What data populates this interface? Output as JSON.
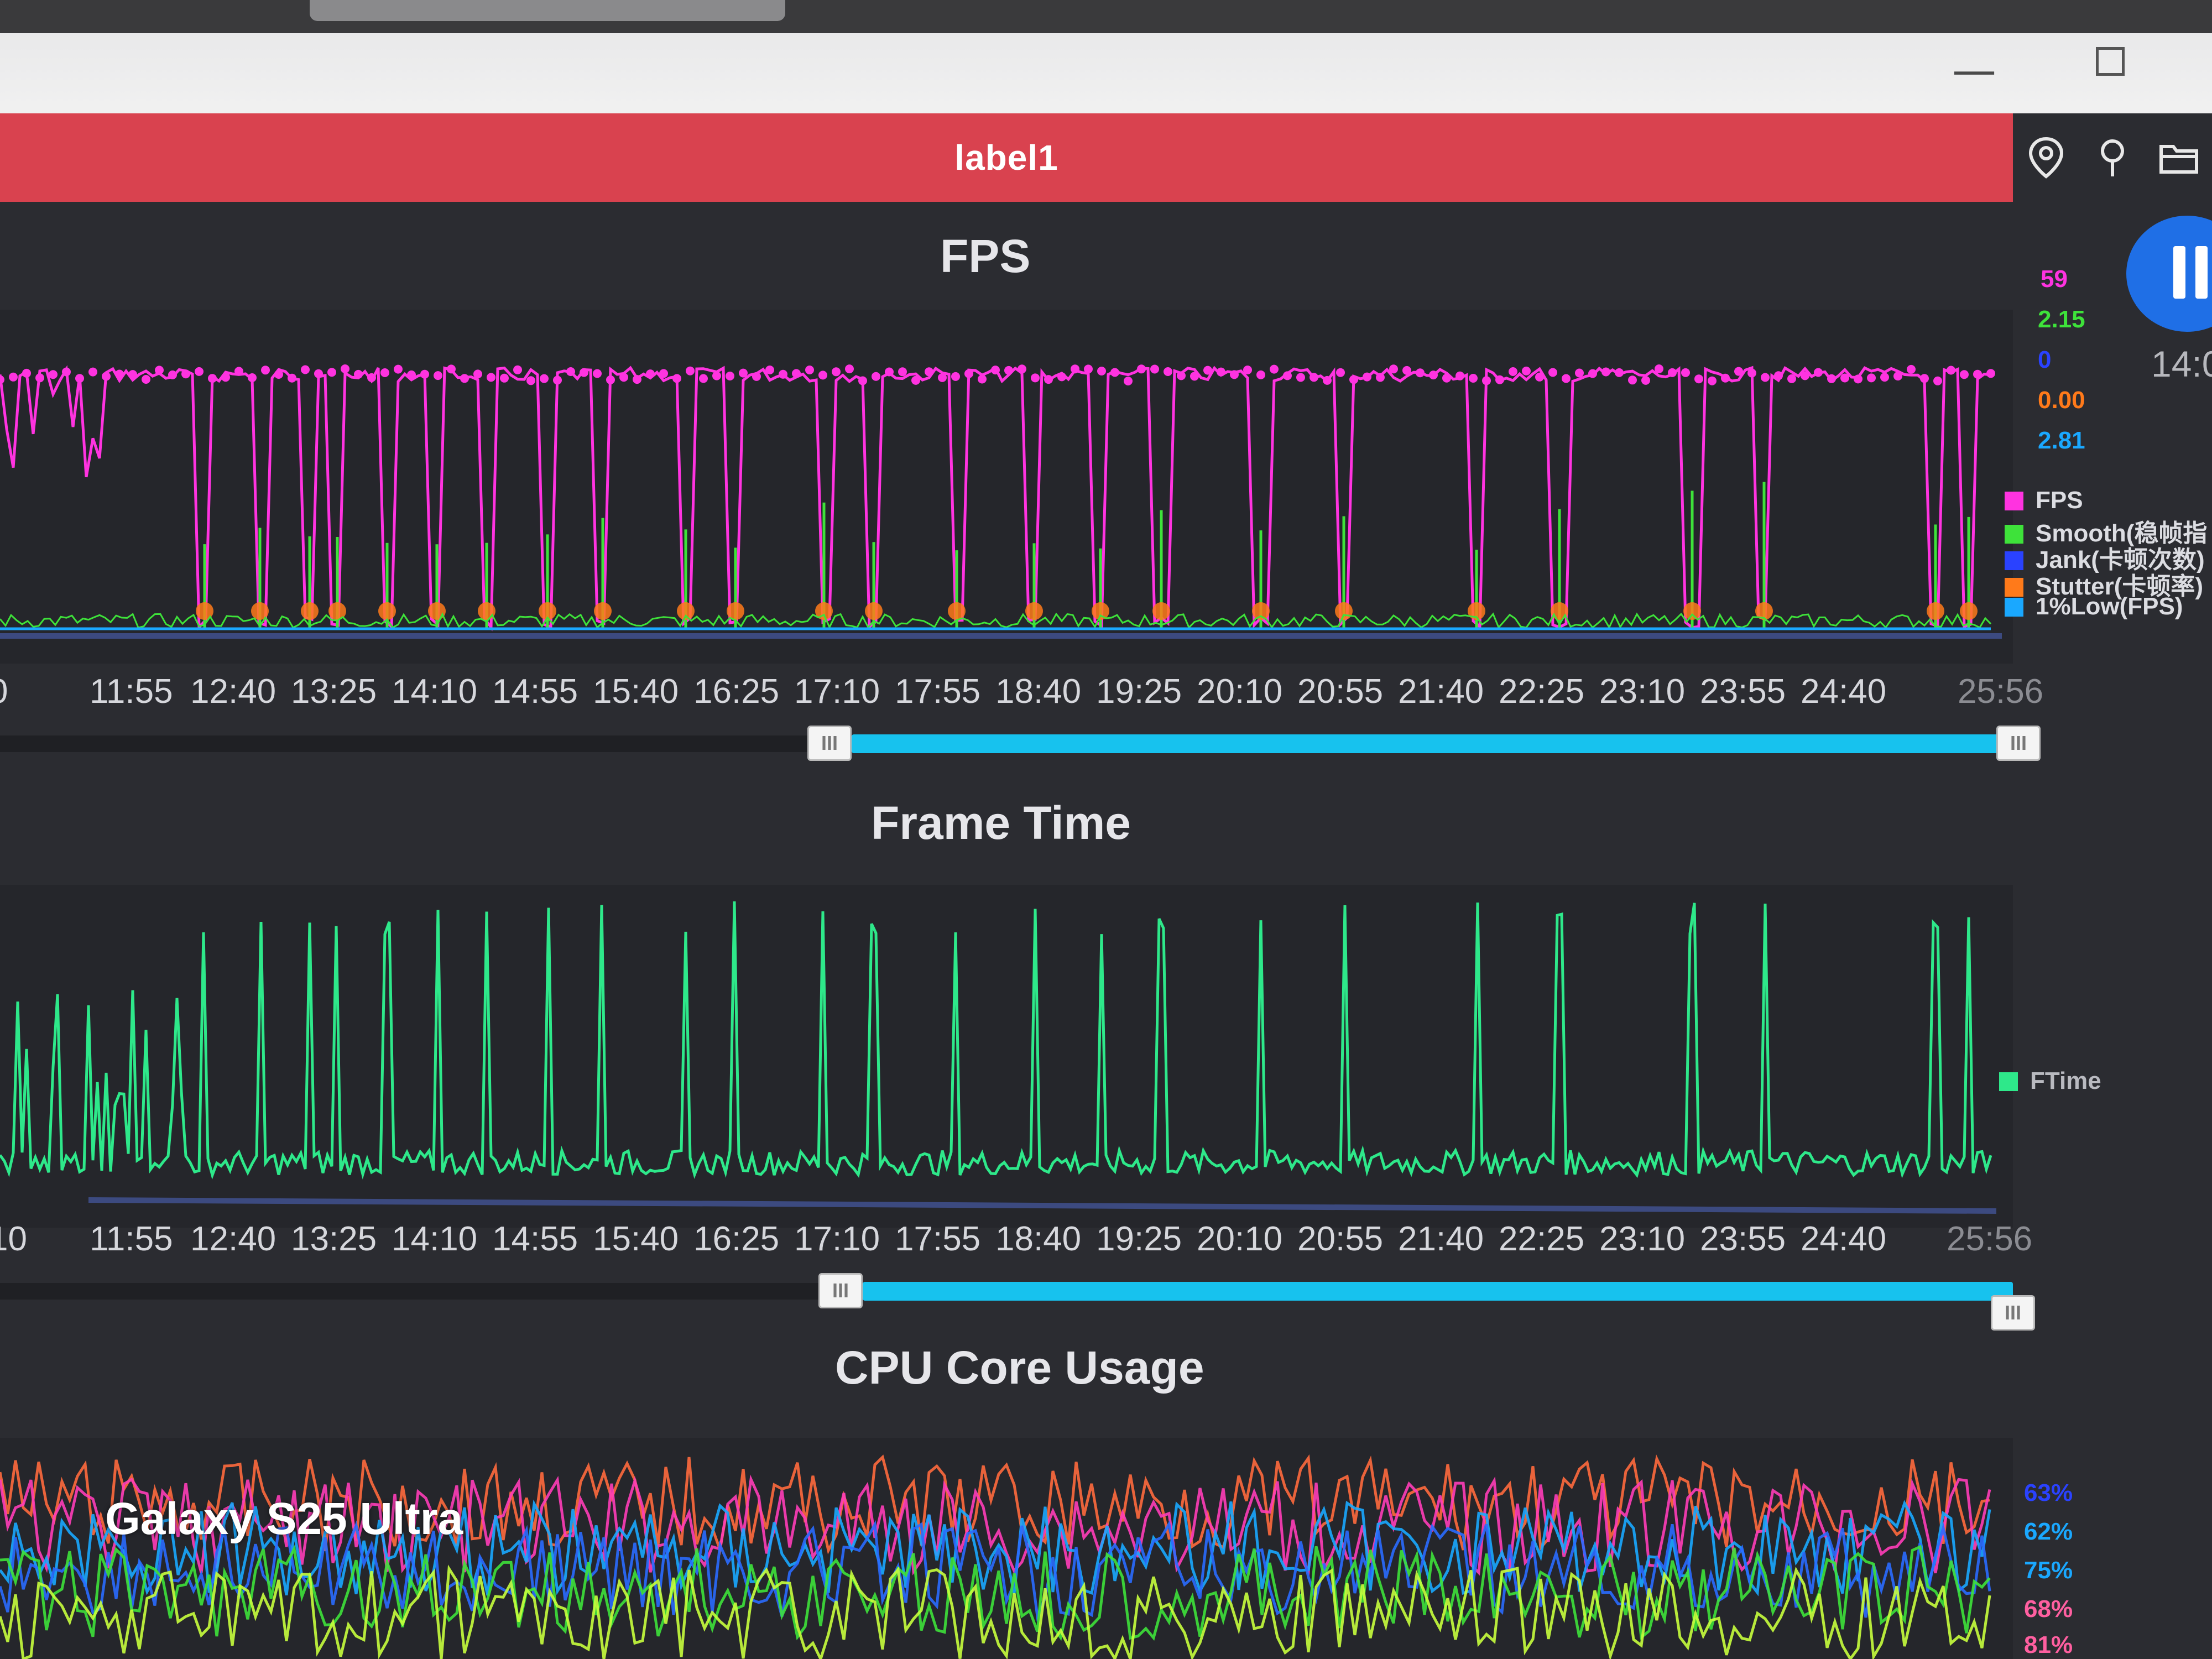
{
  "window": {
    "tab_label": "label1",
    "minimize_glyph": "—",
    "toolbar_icons": [
      "location-pin-icon",
      "map-marker-icon",
      "folder-icon"
    ],
    "side_time": "14:0"
  },
  "colors": {
    "fps": "#ff33e0",
    "smooth": "#3ee23a",
    "jank": "#2a42ff",
    "stutter": "#ff7a1a",
    "low1": "#1aa8ff",
    "ftime": "#2ee88a",
    "scrollbar": "#17c2ee",
    "tab": "#d9424f"
  },
  "fps_panel": {
    "title": "FPS",
    "readouts": [
      "59",
      "2.15",
      "0",
      "0.00",
      "2.81"
    ],
    "legend": [
      {
        "label": "FPS",
        "color": "#ff33e0"
      },
      {
        "label": "Smooth(稳帧指",
        "color": "#3ee23a"
      },
      {
        "label": "Jank(卡顿次数)",
        "color": "#2a42ff"
      },
      {
        "label": "Stutter(卡顿率)",
        "color": "#ff7a1a"
      },
      {
        "label": "1%Low(FPS)",
        "color": "#1aa8ff"
      }
    ],
    "time_labels": [
      "0",
      "11:55",
      "12:40",
      "13:25",
      "14:10",
      "14:55",
      "15:40",
      "16:25",
      "17:10",
      "17:55",
      "18:40",
      "19:25",
      "20:10",
      "20:55",
      "21:40",
      "22:25",
      "23:10",
      "23:55",
      "24:40",
      "25:56"
    ]
  },
  "frametime_panel": {
    "title": "Frame Time",
    "legend": [
      {
        "label": "FTime",
        "color": "#2ee88a"
      }
    ],
    "time_labels": [
      "10",
      "11:55",
      "12:40",
      "13:25",
      "14:10",
      "14:55",
      "15:40",
      "16:25",
      "17:10",
      "17:55",
      "18:40",
      "19:25",
      "20:10",
      "20:55",
      "21:40",
      "22:25",
      "23:10",
      "23:55",
      "24:40",
      "25:56"
    ]
  },
  "cpu_panel": {
    "title": "CPU Core Usage",
    "readouts": [
      "63%",
      "62%",
      "75%",
      "68%",
      "81%"
    ]
  },
  "watermark": "Galaxy S25 Ultra"
}
